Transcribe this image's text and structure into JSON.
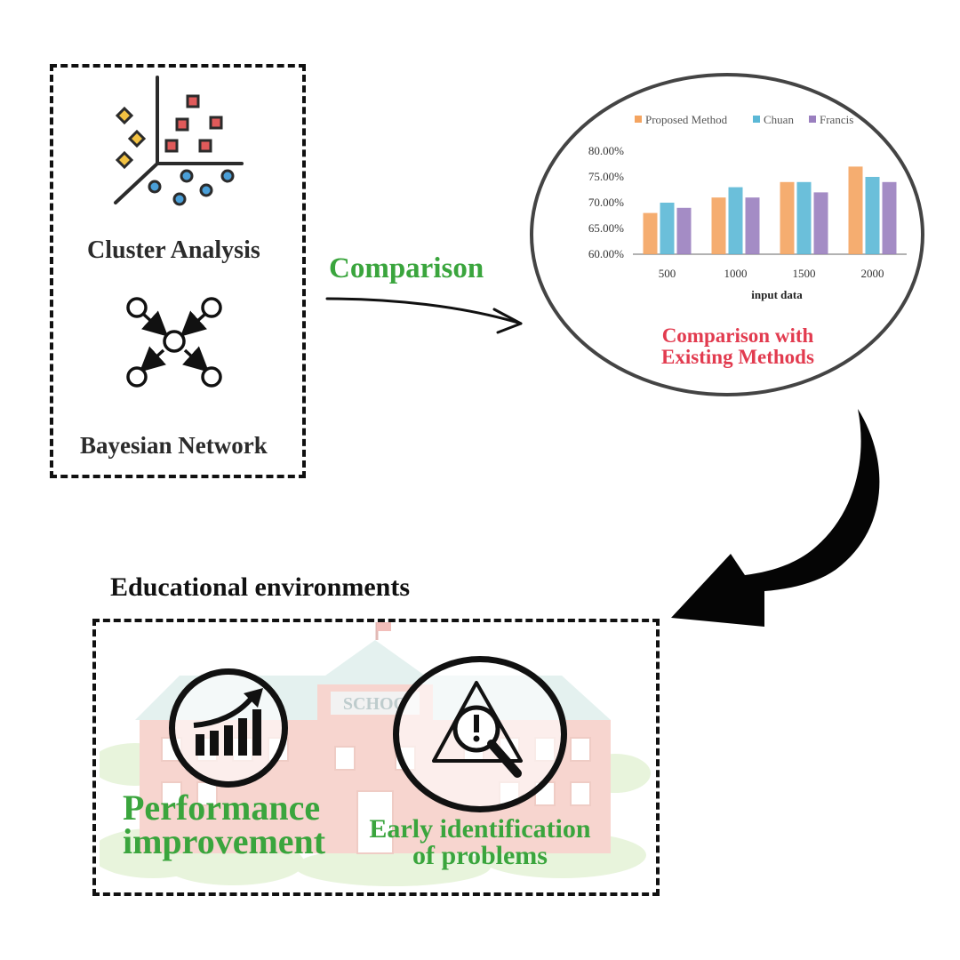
{
  "methods": {
    "cluster_label": "Cluster Analysis",
    "bayes_label": "Bayesian Network"
  },
  "arrow_label": "Comparison",
  "result": {
    "caption_line1": "Comparison with",
    "caption_line2": "Existing Methods"
  },
  "chart_data": {
    "type": "bar",
    "categories": [
      "500",
      "1000",
      "1500",
      "2000"
    ],
    "series": [
      {
        "name": "Proposed Method",
        "color": "#f4a460",
        "values": [
          68,
          71,
          74,
          77
        ]
      },
      {
        "name": "Chuan",
        "color": "#5bb8d6",
        "values": [
          70,
          73,
          74,
          75
        ]
      },
      {
        "name": "Francis",
        "color": "#9a7fbf",
        "values": [
          69,
          71,
          72,
          74
        ]
      }
    ],
    "xlabel": "input data",
    "ylabel": "",
    "ylim": [
      60,
      80
    ],
    "yticks": [
      "60.00%",
      "65.00%",
      "70.00%",
      "75.00%",
      "80.00%"
    ],
    "legend": "top"
  },
  "environment": {
    "title": "Educational environments",
    "school_sign": "SCHOO",
    "outcome1_line1": "Performance",
    "outcome1_line2": "improvement",
    "outcome2_line1": "Early identification",
    "outcome2_line2": "of problems"
  }
}
